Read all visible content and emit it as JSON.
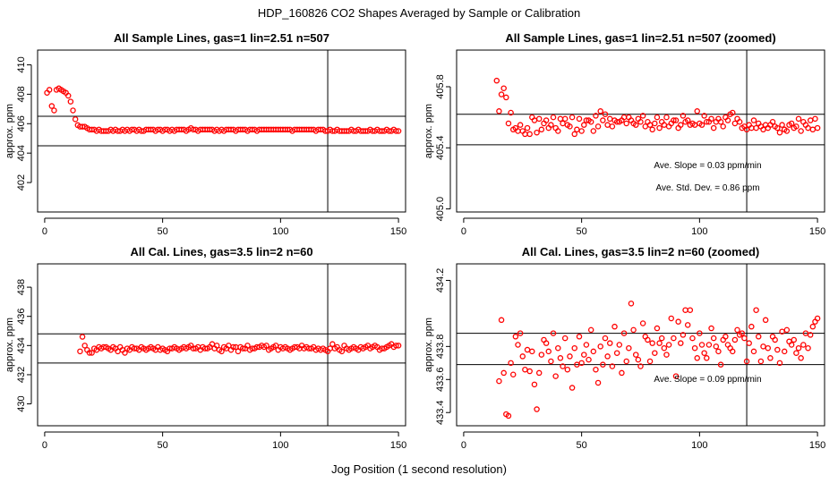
{
  "figure": {
    "title": "HDP_160826  CO2 Shapes Averaged by Sample or Calibration",
    "xlabel": "Jog Position (1 second resolution)"
  },
  "colors": {
    "points": "#ff0000",
    "lines": "#000000",
    "background": "#ffffff"
  },
  "chart_data": [
    {
      "type": "scatter",
      "title": "All Sample Lines, gas=1 lin=2.51 n=507",
      "ylabel": "approx. ppm",
      "xlim": [
        -3,
        153
      ],
      "ylim": [
        400.0,
        411.0
      ],
      "xticks": [
        0,
        50,
        100,
        150
      ],
      "yticks": [
        402,
        404,
        406,
        408,
        410
      ],
      "hlines": [
        406.5,
        404.5
      ],
      "vline": 120,
      "annotations": [],
      "x": [
        1,
        2,
        3,
        4,
        5,
        6,
        7,
        8,
        9,
        10,
        11,
        12,
        13,
        14,
        15,
        16,
        17,
        18,
        19,
        20,
        21,
        22,
        23,
        24,
        25,
        26,
        27,
        28,
        29,
        30,
        31,
        32,
        33,
        34,
        35,
        36,
        37,
        38,
        39,
        40,
        41,
        42,
        43,
        44,
        45,
        46,
        47,
        48,
        49,
        50,
        51,
        52,
        53,
        54,
        55,
        56,
        57,
        58,
        59,
        60,
        61,
        62,
        63,
        64,
        65,
        66,
        67,
        68,
        69,
        70,
        71,
        72,
        73,
        74,
        75,
        76,
        77,
        78,
        79,
        80,
        81,
        82,
        83,
        84,
        85,
        86,
        87,
        88,
        89,
        90,
        91,
        92,
        93,
        94,
        95,
        96,
        97,
        98,
        99,
        100,
        101,
        102,
        103,
        104,
        105,
        106,
        107,
        108,
        109,
        110,
        111,
        112,
        113,
        114,
        115,
        116,
        117,
        118,
        119,
        120,
        121,
        122,
        123,
        124,
        125,
        126,
        127,
        128,
        129,
        130,
        131,
        132,
        133,
        134,
        135,
        136,
        137,
        138,
        139,
        140,
        141,
        142,
        143,
        144,
        145,
        146,
        147,
        148,
        149,
        150
      ],
      "y": [
        408.1,
        408.3,
        407.2,
        406.9,
        408.3,
        408.4,
        408.3,
        408.2,
        408.1,
        407.9,
        407.5,
        406.9,
        406.3,
        405.9,
        405.8,
        405.8,
        405.8,
        405.7,
        405.6,
        405.6,
        405.6,
        405.5,
        405.6,
        405.5,
        405.5,
        405.5,
        405.5,
        405.6,
        405.5,
        405.6,
        405.5,
        405.5,
        405.6,
        405.5,
        405.6,
        405.5,
        405.6,
        405.6,
        405.5,
        405.6,
        405.5,
        405.5,
        405.6,
        405.6,
        405.6,
        405.6,
        405.5,
        405.6,
        405.6,
        405.5,
        405.6,
        405.6,
        405.5,
        405.6,
        405.5,
        405.6,
        405.6,
        405.6,
        405.6,
        405.5,
        405.6,
        405.7,
        405.6,
        405.6,
        405.5,
        405.6,
        405.6,
        405.6,
        405.6,
        405.6,
        405.6,
        405.5,
        405.6,
        405.5,
        405.6,
        405.5,
        405.6,
        405.6,
        405.6,
        405.6,
        405.5,
        405.6,
        405.6,
        405.6,
        405.6,
        405.5,
        405.6,
        405.6,
        405.6,
        405.5,
        405.6,
        405.6,
        405.6,
        405.6,
        405.6,
        405.6,
        405.6,
        405.6,
        405.6,
        405.6,
        405.6,
        405.6,
        405.6,
        405.6,
        405.5,
        405.6,
        405.6,
        405.6,
        405.6,
        405.6,
        405.6,
        405.6,
        405.6,
        405.6,
        405.5,
        405.6,
        405.6,
        405.6,
        405.5,
        405.5,
        405.6,
        405.5,
        405.5,
        405.6,
        405.5,
        405.5,
        405.5,
        405.5,
        405.5,
        405.6,
        405.5,
        405.5,
        405.6,
        405.5,
        405.5,
        405.5,
        405.5,
        405.6,
        405.5,
        405.5,
        405.6,
        405.5,
        405.5,
        405.5,
        405.6,
        405.5,
        405.5,
        405.6,
        405.5,
        405.5
      ]
    },
    {
      "type": "scatter",
      "title": "All Sample Lines, gas=1 lin=2.51 n=507 (zoomed)",
      "ylabel": "approx. ppm",
      "xlim": [
        -3,
        153
      ],
      "ylim": [
        404.98,
        406.04
      ],
      "xticks": [
        0,
        50,
        100,
        150
      ],
      "yticks": [
        405.0,
        405.4,
        405.8
      ],
      "hlines": [
        405.62,
        405.42
      ],
      "vline": 120,
      "annotations": [
        "Ave. Slope =  0.03  ppm/min",
        "Ave. Std. Dev. =  0.86  ppm"
      ],
      "x": [
        14,
        15,
        16,
        17,
        18,
        19,
        20,
        21,
        22,
        23,
        24,
        25,
        26,
        27,
        28,
        29,
        30,
        31,
        32,
        33,
        34,
        35,
        36,
        37,
        38,
        39,
        40,
        41,
        42,
        43,
        44,
        45,
        46,
        47,
        48,
        49,
        50,
        51,
        52,
        53,
        54,
        55,
        56,
        57,
        58,
        59,
        60,
        61,
        62,
        63,
        64,
        65,
        66,
        67,
        68,
        69,
        70,
        71,
        72,
        73,
        74,
        75,
        76,
        77,
        78,
        79,
        80,
        81,
        82,
        83,
        84,
        85,
        86,
        87,
        88,
        89,
        90,
        91,
        92,
        93,
        94,
        95,
        96,
        97,
        98,
        99,
        100,
        101,
        102,
        103,
        104,
        105,
        106,
        107,
        108,
        109,
        110,
        111,
        112,
        113,
        114,
        115,
        116,
        117,
        118,
        119,
        120,
        121,
        122,
        123,
        124,
        125,
        126,
        127,
        128,
        129,
        130,
        131,
        132,
        133,
        134,
        135,
        136,
        137,
        138,
        139,
        140,
        141,
        142,
        143,
        144,
        145,
        146,
        147,
        148,
        149,
        150
      ],
      "y": [
        405.84,
        405.64,
        405.75,
        405.79,
        405.73,
        405.56,
        405.63,
        405.52,
        405.53,
        405.51,
        405.55,
        405.51,
        405.49,
        405.53,
        405.49,
        405.6,
        405.58,
        405.5,
        405.59,
        405.52,
        405.56,
        405.58,
        405.53,
        405.55,
        405.6,
        405.53,
        405.51,
        405.59,
        405.56,
        405.59,
        405.55,
        405.54,
        405.6,
        405.49,
        405.52,
        405.59,
        405.51,
        405.55,
        405.58,
        405.58,
        405.57,
        405.51,
        405.61,
        405.54,
        405.64,
        405.58,
        405.62,
        405.55,
        405.59,
        405.54,
        405.58,
        405.57,
        405.57,
        405.58,
        405.6,
        405.56,
        405.6,
        405.58,
        405.56,
        405.55,
        405.59,
        405.57,
        405.61,
        405.54,
        405.57,
        405.55,
        405.52,
        405.56,
        405.6,
        405.53,
        405.57,
        405.55,
        405.6,
        405.54,
        405.56,
        405.58,
        405.58,
        405.53,
        405.55,
        405.61,
        405.57,
        405.58,
        405.55,
        405.56,
        405.55,
        405.64,
        405.56,
        405.55,
        405.61,
        405.57,
        405.57,
        405.59,
        405.53,
        405.57,
        405.59,
        405.57,
        405.54,
        405.6,
        405.58,
        405.62,
        405.63,
        405.56,
        405.59,
        405.57,
        405.53,
        405.54,
        405.52,
        405.55,
        405.53,
        405.58,
        405.53,
        405.56,
        405.54,
        405.52,
        405.55,
        405.53,
        405.55,
        405.57,
        405.54,
        405.53,
        405.5,
        405.55,
        405.52,
        405.51,
        405.55,
        405.56,
        405.53,
        405.54,
        405.59,
        405.51,
        405.57,
        405.55,
        405.53,
        405.58,
        405.52,
        405.59,
        405.53
      ]
    },
    {
      "type": "scatter",
      "title": "All Cal. Lines, gas=3.5 lin=2 n=60",
      "ylabel": "approx. ppm",
      "xlim": [
        -3,
        153
      ],
      "ylim": [
        428.5,
        439.6
      ],
      "xticks": [
        0,
        50,
        100,
        150
      ],
      "yticks": [
        430,
        432,
        434,
        436,
        438
      ],
      "hlines": [
        434.8,
        432.8
      ],
      "vline": 120,
      "annotations": [],
      "x": [
        15,
        16,
        17,
        18,
        19,
        20,
        21,
        22,
        23,
        24,
        25,
        26,
        27,
        28,
        29,
        30,
        31,
        32,
        33,
        34,
        35,
        36,
        37,
        38,
        39,
        40,
        41,
        42,
        43,
        44,
        45,
        46,
        47,
        48,
        49,
        50,
        51,
        52,
        53,
        54,
        55,
        56,
        57,
        58,
        59,
        60,
        61,
        62,
        63,
        64,
        65,
        66,
        67,
        68,
        69,
        70,
        71,
        72,
        73,
        74,
        75,
        76,
        77,
        78,
        79,
        80,
        81,
        82,
        83,
        84,
        85,
        86,
        87,
        88,
        89,
        90,
        91,
        92,
        93,
        94,
        95,
        96,
        97,
        98,
        99,
        100,
        101,
        102,
        103,
        104,
        105,
        106,
        107,
        108,
        109,
        110,
        111,
        112,
        113,
        114,
        115,
        116,
        117,
        118,
        119,
        120,
        121,
        122,
        123,
        124,
        125,
        126,
        127,
        128,
        129,
        130,
        131,
        132,
        133,
        134,
        135,
        136,
        137,
        138,
        139,
        140,
        141,
        142,
        143,
        144,
        145,
        146,
        147,
        148,
        149,
        150
      ],
      "y": [
        433.6,
        434.6,
        434.0,
        433.7,
        433.5,
        433.5,
        433.8,
        433.7,
        433.9,
        433.8,
        433.9,
        433.9,
        433.8,
        433.7,
        433.9,
        433.8,
        433.6,
        433.9,
        433.7,
        433.5,
        433.8,
        433.7,
        433.9,
        433.8,
        433.8,
        433.7,
        433.9,
        433.8,
        433.7,
        433.8,
        433.9,
        433.8,
        433.7,
        433.9,
        433.7,
        433.8,
        433.7,
        433.6,
        433.8,
        433.8,
        433.9,
        433.8,
        433.7,
        433.8,
        433.9,
        433.8,
        433.9,
        434.0,
        433.8,
        433.8,
        433.9,
        433.7,
        433.9,
        433.8,
        433.8,
        433.9,
        434.1,
        433.8,
        434.0,
        433.7,
        433.6,
        433.9,
        433.8,
        434.0,
        433.7,
        433.9,
        433.9,
        433.6,
        433.9,
        433.8,
        433.8,
        434.0,
        433.7,
        433.8,
        433.8,
        433.9,
        433.9,
        434.0,
        433.9,
        434.0,
        433.7,
        433.8,
        433.9,
        434.0,
        433.7,
        433.9,
        433.8,
        433.9,
        433.8,
        433.7,
        433.8,
        433.9,
        433.9,
        433.8,
        434.0,
        433.8,
        433.9,
        433.8,
        433.8,
        433.9,
        433.7,
        433.8,
        433.7,
        433.8,
        433.7,
        433.6,
        433.8,
        434.1,
        433.8,
        433.9,
        433.7,
        433.6,
        434.0,
        433.8,
        433.7,
        433.8,
        433.9,
        433.8,
        433.7,
        433.9,
        433.8,
        433.9,
        434.0,
        433.8,
        433.9,
        434.0,
        433.9,
        433.7,
        433.8,
        433.8,
        433.9,
        434.0,
        434.1,
        433.9,
        434.0,
        434.0
      ]
    },
    {
      "type": "scatter",
      "title": "All Cal. Lines, gas=3.5 lin=2 n=60 (zoomed)",
      "ylabel": "approx. ppm",
      "xlim": [
        -3,
        153
      ],
      "ylim": [
        433.32,
        434.3
      ],
      "xticks": [
        0,
        50,
        100,
        150
      ],
      "yticks": [
        433.4,
        433.6,
        433.8,
        434.2
      ],
      "hlines": [
        433.88,
        433.69
      ],
      "vline": 120,
      "annotations": [
        "Ave. Slope =  0.09  ppm/min"
      ],
      "x": [
        15,
        16,
        17,
        18,
        19,
        20,
        21,
        22,
        23,
        24,
        25,
        26,
        27,
        28,
        29,
        30,
        31,
        32,
        33,
        34,
        35,
        36,
        37,
        38,
        39,
        40,
        41,
        42,
        43,
        44,
        45,
        46,
        47,
        48,
        49,
        50,
        51,
        52,
        53,
        54,
        55,
        56,
        57,
        58,
        59,
        60,
        61,
        62,
        63,
        64,
        65,
        66,
        67,
        68,
        69,
        70,
        71,
        72,
        73,
        74,
        75,
        76,
        77,
        78,
        79,
        80,
        81,
        82,
        83,
        84,
        85,
        86,
        87,
        88,
        89,
        90,
        91,
        92,
        93,
        94,
        95,
        96,
        97,
        98,
        99,
        100,
        101,
        102,
        103,
        104,
        105,
        106,
        107,
        108,
        109,
        110,
        111,
        112,
        113,
        114,
        115,
        116,
        117,
        118,
        119,
        120,
        121,
        122,
        123,
        124,
        125,
        126,
        127,
        128,
        129,
        130,
        131,
        132,
        133,
        134,
        135,
        136,
        137,
        138,
        139,
        140,
        141,
        142,
        143,
        144,
        145,
        146,
        147,
        148,
        149,
        150
      ],
      "y": [
        433.59,
        433.96,
        433.64,
        433.39,
        433.38,
        433.7,
        433.63,
        433.86,
        433.81,
        433.88,
        433.74,
        433.66,
        433.78,
        433.65,
        433.77,
        433.57,
        433.42,
        433.64,
        433.75,
        433.84,
        433.82,
        433.77,
        433.71,
        433.88,
        433.62,
        433.79,
        433.73,
        433.68,
        433.85,
        433.66,
        433.74,
        433.55,
        433.79,
        433.69,
        433.86,
        433.7,
        433.75,
        433.81,
        433.72,
        433.9,
        433.77,
        433.66,
        433.58,
        433.8,
        433.69,
        433.85,
        433.74,
        433.82,
        433.68,
        433.92,
        433.76,
        433.81,
        433.64,
        433.88,
        433.71,
        433.79,
        434.06,
        433.9,
        433.75,
        433.72,
        433.68,
        433.94,
        433.86,
        433.84,
        433.71,
        433.82,
        433.76,
        433.91,
        433.82,
        433.85,
        433.79,
        433.75,
        433.81,
        433.97,
        433.85,
        433.62,
        433.95,
        433.82,
        433.87,
        434.02,
        433.93,
        434.02,
        433.85,
        433.79,
        433.73,
        433.88,
        433.81,
        433.76,
        433.73,
        433.81,
        433.91,
        433.85,
        433.8,
        433.77,
        433.69,
        433.84,
        433.86,
        433.81,
        433.79,
        433.77,
        433.84,
        433.9,
        433.87,
        433.88,
        433.85,
        433.71,
        433.82,
        433.92,
        433.77,
        434.02,
        433.86,
        433.71,
        433.8,
        433.96,
        433.79,
        433.73,
        433.86,
        433.84,
        433.78,
        433.7,
        433.89,
        433.77,
        433.9,
        433.83,
        433.81,
        433.84,
        433.76,
        433.79,
        433.73,
        433.81,
        433.88,
        433.79,
        433.87,
        433.92,
        433.95,
        433.97
      ]
    }
  ]
}
